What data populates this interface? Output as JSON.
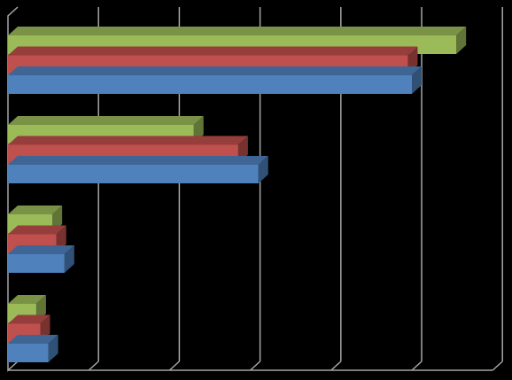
{
  "chart_data": {
    "type": "bar",
    "orientation": "horizontal",
    "style": "3d",
    "categories": [
      "",
      "",
      "",
      ""
    ],
    "series": [
      {
        "values": [
          50,
          31,
          7,
          5
        ],
        "color": "#4f81bd"
      },
      {
        "values": [
          49.5,
          28.5,
          6,
          4
        ],
        "color": "#c0504d"
      },
      {
        "values": [
          55.5,
          23,
          5.5,
          3.5
        ],
        "color": "#9bbb59"
      }
    ],
    "xlim": [
      0,
      60
    ],
    "x_tick_step": 10,
    "grid": true,
    "legend": "none",
    "title": "",
    "xlabel": "",
    "ylabel": ""
  }
}
